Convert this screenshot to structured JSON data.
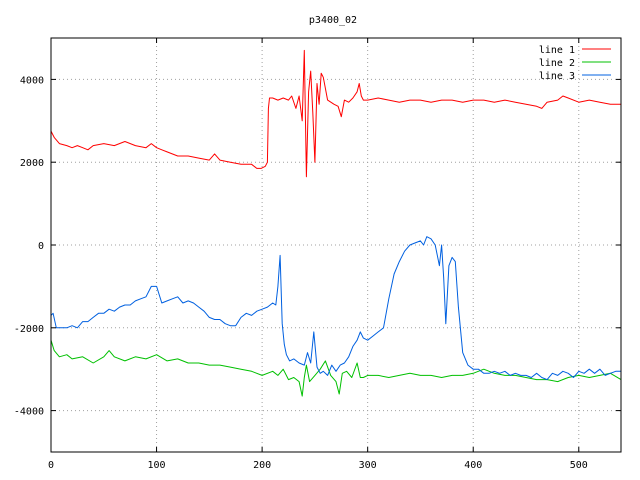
{
  "chart_data": {
    "type": "line",
    "title": "p3400_02",
    "xlabel": "",
    "ylabel": "",
    "xlim": [
      0,
      540
    ],
    "ylim": [
      -5000,
      5000
    ],
    "grid": true,
    "legend_position": "top-right",
    "x_ticks": [
      0,
      100,
      200,
      300,
      400,
      500
    ],
    "y_ticks": [
      -4000,
      -2000,
      0,
      2000,
      4000
    ],
    "x_tick_labels": [
      "0",
      "100",
      "200",
      "300",
      "400",
      "500"
    ],
    "y_tick_labels": [
      "-4000",
      "-2000",
      "0",
      "2000",
      "4000"
    ],
    "series": [
      {
        "name": "line 1",
        "color": "#ff0000",
        "x": [
          0,
          3,
          8,
          15,
          20,
          25,
          30,
          35,
          40,
          50,
          60,
          70,
          80,
          90,
          95,
          100,
          105,
          110,
          120,
          130,
          140,
          150,
          155,
          160,
          170,
          180,
          190,
          195,
          199,
          203,
          205,
          206,
          207,
          210,
          215,
          220,
          225,
          228,
          232,
          235,
          238,
          240,
          242,
          244,
          246,
          248,
          250,
          252,
          254,
          256,
          258,
          262,
          268,
          272,
          275,
          278,
          282,
          286,
          290,
          292,
          294,
          296,
          300,
          310,
          320,
          330,
          340,
          350,
          360,
          370,
          380,
          390,
          400,
          410,
          420,
          430,
          440,
          450,
          460,
          465,
          470,
          480,
          485,
          490,
          500,
          510,
          520,
          530,
          540
        ],
        "y": [
          2750,
          2600,
          2450,
          2400,
          2350,
          2400,
          2350,
          2300,
          2400,
          2450,
          2400,
          2500,
          2400,
          2350,
          2450,
          2350,
          2300,
          2250,
          2150,
          2150,
          2100,
          2050,
          2200,
          2050,
          2000,
          1950,
          1950,
          1850,
          1850,
          1900,
          2000,
          3300,
          3550,
          3550,
          3500,
          3550,
          3500,
          3600,
          3300,
          3600,
          3000,
          4700,
          1650,
          3700,
          4200,
          3200,
          2000,
          3900,
          3400,
          4150,
          4050,
          3500,
          3400,
          3350,
          3100,
          3500,
          3450,
          3550,
          3700,
          3900,
          3600,
          3500,
          3500,
          3550,
          3500,
          3450,
          3500,
          3500,
          3450,
          3500,
          3500,
          3450,
          3500,
          3500,
          3450,
          3500,
          3450,
          3400,
          3350,
          3300,
          3450,
          3500,
          3600,
          3550,
          3450,
          3500,
          3450,
          3400,
          3400
        ]
      },
      {
        "name": "line 2",
        "color": "#00c000",
        "x": [
          0,
          3,
          8,
          15,
          20,
          30,
          40,
          50,
          55,
          60,
          70,
          80,
          90,
          100,
          110,
          120,
          130,
          140,
          150,
          160,
          170,
          180,
          190,
          200,
          210,
          215,
          220,
          225,
          230,
          235,
          238,
          240,
          242,
          245,
          250,
          255,
          260,
          265,
          270,
          273,
          276,
          280,
          285,
          290,
          293,
          296,
          300,
          310,
          320,
          330,
          340,
          350,
          360,
          370,
          380,
          390,
          400,
          410,
          420,
          430,
          440,
          450,
          460,
          470,
          480,
          490,
          500,
          510,
          520,
          530,
          540
        ],
        "y": [
          -2300,
          -2550,
          -2700,
          -2650,
          -2750,
          -2700,
          -2850,
          -2700,
          -2550,
          -2700,
          -2800,
          -2700,
          -2750,
          -2650,
          -2800,
          -2750,
          -2850,
          -2850,
          -2900,
          -2900,
          -2950,
          -3000,
          -3050,
          -3150,
          -3050,
          -3150,
          -3000,
          -3250,
          -3200,
          -3300,
          -3650,
          -3200,
          -2900,
          -3300,
          -3150,
          -3000,
          -2800,
          -3150,
          -3300,
          -3600,
          -3100,
          -3050,
          -3200,
          -2850,
          -3200,
          -3200,
          -3150,
          -3150,
          -3200,
          -3150,
          -3100,
          -3150,
          -3150,
          -3200,
          -3150,
          -3150,
          -3100,
          -3000,
          -3100,
          -3150,
          -3150,
          -3200,
          -3250,
          -3250,
          -3300,
          -3200,
          -3150,
          -3200,
          -3150,
          -3100,
          -3250
        ]
      },
      {
        "name": "line 3",
        "color": "#0060e0",
        "x": [
          0,
          2,
          5,
          10,
          15,
          20,
          25,
          30,
          35,
          40,
          45,
          50,
          55,
          60,
          65,
          70,
          75,
          80,
          85,
          90,
          95,
          100,
          105,
          110,
          115,
          120,
          125,
          130,
          135,
          140,
          145,
          150,
          155,
          160,
          165,
          170,
          175,
          180,
          185,
          190,
          195,
          200,
          205,
          210,
          213,
          215,
          217,
          219,
          221,
          223,
          226,
          230,
          235,
          240,
          243,
          246,
          249,
          252,
          255,
          258,
          262,
          266,
          270,
          274,
          278,
          282,
          286,
          290,
          293,
          296,
          300,
          305,
          310,
          315,
          320,
          325,
          330,
          335,
          340,
          345,
          350,
          353,
          356,
          360,
          364,
          368,
          370,
          372,
          374,
          377,
          380,
          383,
          386,
          390,
          395,
          400,
          405,
          410,
          415,
          420,
          425,
          430,
          435,
          440,
          445,
          450,
          455,
          460,
          465,
          470,
          475,
          480,
          485,
          490,
          495,
          500,
          505,
          510,
          515,
          520,
          525,
          530,
          535,
          540
        ],
        "y": [
          -1700,
          -1650,
          -2000,
          -2000,
          -2000,
          -1950,
          -2000,
          -1850,
          -1850,
          -1750,
          -1650,
          -1650,
          -1550,
          -1600,
          -1500,
          -1450,
          -1450,
          -1350,
          -1300,
          -1250,
          -1000,
          -1000,
          -1400,
          -1350,
          -1300,
          -1250,
          -1400,
          -1350,
          -1400,
          -1500,
          -1600,
          -1750,
          -1800,
          -1800,
          -1900,
          -1950,
          -1950,
          -1750,
          -1650,
          -1700,
          -1600,
          -1550,
          -1500,
          -1400,
          -1450,
          -1000,
          -250,
          -1900,
          -2400,
          -2650,
          -2800,
          -2750,
          -2850,
          -2900,
          -2600,
          -2850,
          -2100,
          -2950,
          -3100,
          -3050,
          -3150,
          -2900,
          -3050,
          -2900,
          -2850,
          -2700,
          -2450,
          -2300,
          -2100,
          -2250,
          -2300,
          -2200,
          -2100,
          -2000,
          -1300,
          -700,
          -400,
          -150,
          0,
          50,
          100,
          0,
          200,
          150,
          0,
          -500,
          0,
          -800,
          -1900,
          -500,
          -300,
          -400,
          -1500,
          -2600,
          -2900,
          -3000,
          -3000,
          -3100,
          -3100,
          -3050,
          -3100,
          -3050,
          -3150,
          -3100,
          -3150,
          -3150,
          -3200,
          -3100,
          -3200,
          -3250,
          -3100,
          -3150,
          -3050,
          -3100,
          -3200,
          -3050,
          -3100,
          -3000,
          -3100,
          -3000,
          -3150,
          -3100,
          -3050,
          -3050
        ]
      }
    ]
  }
}
